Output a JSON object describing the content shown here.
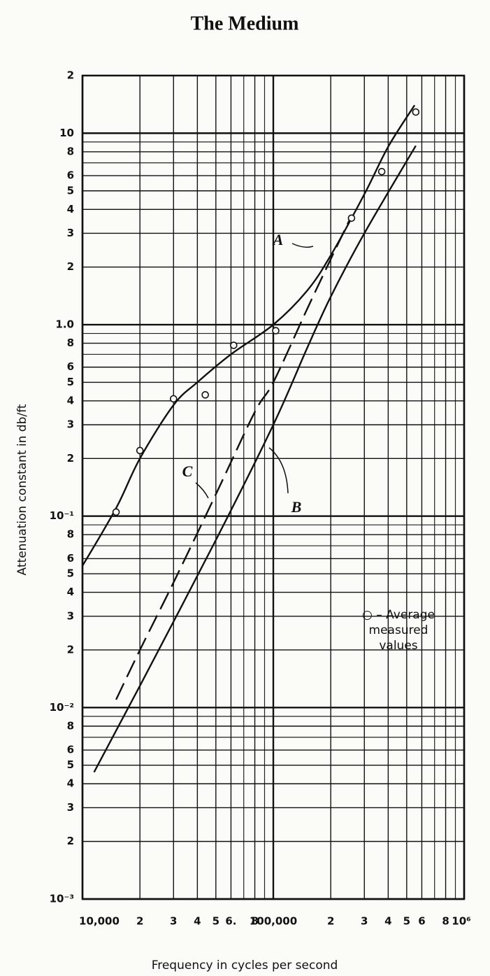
{
  "chart_data": {
    "type": "line",
    "title": "The Medium",
    "x_label": "Frequency in cycles per second",
    "y_label": "Attenuation constant in db/ft",
    "log_x": true,
    "log_y": true,
    "grid": true,
    "xlim": [
      10000,
      1000000
    ],
    "ylim": [
      0.001,
      20
    ],
    "xticks": [
      {
        "value": 10000,
        "label": "10,000"
      },
      {
        "value": 20000,
        "label": "2"
      },
      {
        "value": 30000,
        "label": "3"
      },
      {
        "value": 40000,
        "label": "4"
      },
      {
        "value": 50000,
        "label": "5"
      },
      {
        "value": 60000,
        "label": "6."
      },
      {
        "value": 80000,
        "label": "8"
      },
      {
        "value": 100000,
        "label": "100,000"
      },
      {
        "value": 200000,
        "label": "2"
      },
      {
        "value": 300000,
        "label": "3"
      },
      {
        "value": 400000,
        "label": "4"
      },
      {
        "value": 500000,
        "label": "5"
      },
      {
        "value": 600000,
        "label": "6"
      },
      {
        "value": 800000,
        "label": "8"
      },
      {
        "value": 1000000,
        "label": "10⁶"
      }
    ],
    "xgrid_minor": [
      70000,
      90000,
      700000,
      900000
    ],
    "yticks": [
      {
        "value": 20,
        "label": "2"
      },
      10,
      8,
      6,
      5,
      4,
      3,
      2,
      {
        "value": 1,
        "label": "1.0"
      },
      {
        "value": 0.8,
        "label": "8"
      },
      {
        "value": 0.6,
        "label": "6"
      },
      {
        "value": 0.5,
        "label": "5"
      },
      {
        "value": 0.4,
        "label": "4"
      },
      {
        "value": 0.3,
        "label": "3"
      },
      {
        "value": 0.2,
        "label": "2"
      },
      {
        "value": 0.1,
        "label": "10⁻¹"
      },
      {
        "value": 0.08,
        "label": "8"
      },
      {
        "value": 0.06,
        "label": "6"
      },
      {
        "value": 0.05,
        "label": "5"
      },
      {
        "value": 0.04,
        "label": "4"
      },
      {
        "value": 0.03,
        "label": "3"
      },
      {
        "value": 0.02,
        "label": "2"
      },
      {
        "value": 0.01,
        "label": "10⁻²"
      },
      {
        "value": 0.008,
        "label": "8"
      },
      {
        "value": 0.006,
        "label": "6"
      },
      {
        "value": 0.005,
        "label": "5"
      },
      {
        "value": 0.004,
        "label": "4"
      },
      {
        "value": 0.003,
        "label": "3"
      },
      {
        "value": 0.002,
        "label": "2"
      },
      {
        "value": 0.001,
        "label": "10⁻³"
      }
    ],
    "ygrid_minor": [
      9,
      7,
      0.9,
      0.7,
      0.09,
      0.07,
      0.009,
      0.007
    ],
    "series": [
      {
        "name": "A",
        "color": "#111111",
        "style": "solid",
        "x": [
          10000,
          15000,
          20000,
          30000,
          40000,
          60000,
          100000,
          150000,
          200000,
          300000,
          400000,
          550000
        ],
        "values": [
          0.055,
          0.11,
          0.2,
          0.38,
          0.5,
          0.7,
          1.0,
          1.5,
          2.3,
          4.8,
          8.5,
          14
        ]
      },
      {
        "name": "B",
        "color": "#111111",
        "style": "solid",
        "x": [
          11500,
          20000,
          50000,
          100000,
          150000,
          200000,
          300000,
          558000
        ],
        "values": [
          0.0046,
          0.013,
          0.075,
          0.3,
          0.75,
          1.4,
          3.0,
          8.6
        ]
      },
      {
        "name": "C",
        "color": "#111111",
        "style": "dashed",
        "x": [
          15000,
          20000,
          30000,
          50000,
          80000,
          100000,
          150000,
          200000,
          250000
        ],
        "values": [
          0.011,
          0.02,
          0.045,
          0.13,
          0.35,
          0.5,
          1.2,
          2.2,
          3.5
        ]
      },
      {
        "name": "– Average measured values",
        "color": "#111111",
        "style": "points",
        "x": [
          15000,
          20000,
          30000,
          44000,
          62000,
          103000,
          257000,
          370000,
          558000
        ],
        "values": [
          0.105,
          0.22,
          0.41,
          0.43,
          0.78,
          0.93,
          3.6,
          6.3,
          12.9
        ]
      }
    ]
  }
}
